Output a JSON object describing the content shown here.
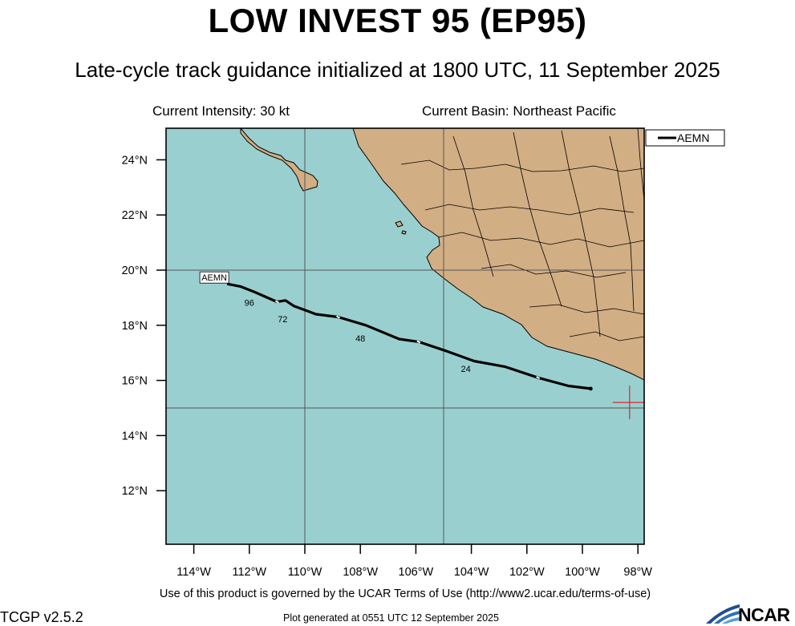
{
  "header": {
    "title": "LOW INVEST 95 (EP95)",
    "subtitle": "Late-cycle track guidance initialized at 1800 UTC, 11 September 2025",
    "intensity": "Current Intensity: 30 kt",
    "basin": "Current Basin: Northeast Pacific"
  },
  "map": {
    "ocean_color": "#9ACFCF",
    "land_color": "#D2AE85",
    "lat_range": [
      10,
      25
    ],
    "lon_range": [
      -115,
      -97.8
    ],
    "lat_ticks": [
      {
        "lat": 24,
        "label": "24°N"
      },
      {
        "lat": 22,
        "label": "22°N"
      },
      {
        "lat": 20,
        "label": "20°N"
      },
      {
        "lat": 18,
        "label": "18°N"
      },
      {
        "lat": 16,
        "label": "16°N"
      },
      {
        "lat": 14,
        "label": "14°N"
      },
      {
        "lat": 12,
        "label": "12°N"
      }
    ],
    "lon_ticks": [
      {
        "lon": -114,
        "label": "114°W"
      },
      {
        "lon": -112,
        "label": "112°W"
      },
      {
        "lon": -110,
        "label": "110°W"
      },
      {
        "lon": -108,
        "label": "108°W"
      },
      {
        "lon": -106,
        "label": "106°W"
      },
      {
        "lon": -104,
        "label": "104°W"
      },
      {
        "lon": -102,
        "label": "102°W"
      },
      {
        "lon": -100,
        "label": "100°W"
      },
      {
        "lon": -98,
        "label": "98°W"
      }
    ],
    "gridlines": {
      "lats": [
        20,
        15
      ],
      "lons": [
        -110,
        -105
      ]
    },
    "current_position": {
      "lat": 15.2,
      "lon": -98.3
    }
  },
  "legend": {
    "label": "AEMN"
  },
  "track": {
    "name": "AEMN",
    "label": "AEMN",
    "points": [
      {
        "lon": -99.7,
        "lat": 15.7
      },
      {
        "lon": -100.5,
        "lat": 15.8
      },
      {
        "lon": -101.6,
        "lat": 16.1
      },
      {
        "lon": -102.8,
        "lat": 16.5
      },
      {
        "lon": -103.9,
        "lat": 16.7
      },
      {
        "lon": -105.0,
        "lat": 17.1
      },
      {
        "lon": -105.9,
        "lat": 17.4
      },
      {
        "lon": -106.6,
        "lat": 17.5
      },
      {
        "lon": -107.8,
        "lat": 18.0
      },
      {
        "lon": -108.8,
        "lat": 18.3
      },
      {
        "lon": -109.6,
        "lat": 18.4
      },
      {
        "lon": -110.4,
        "lat": 18.7
      },
      {
        "lon": -110.7,
        "lat": 18.9
      },
      {
        "lon": -111.0,
        "lat": 18.85
      },
      {
        "lon": -111.8,
        "lat": 19.2
      },
      {
        "lon": -112.3,
        "lat": 19.4
      },
      {
        "lon": -112.8,
        "lat": 19.5
      }
    ],
    "hour_labels": [
      {
        "text": "24",
        "lon": -104.2,
        "lat": 16.6
      },
      {
        "text": "48",
        "lon": -108.0,
        "lat": 17.7
      },
      {
        "text": "72",
        "lon": -110.8,
        "lat": 18.4
      },
      {
        "text": "96",
        "lon": -112.0,
        "lat": 19.0
      }
    ],
    "markers": [
      {
        "lon": -101.6,
        "lat": 16.1
      },
      {
        "lon": -105.9,
        "lat": 17.4
      },
      {
        "lon": -108.8,
        "lat": 18.3
      },
      {
        "lon": -111.0,
        "lat": 18.85
      }
    ]
  },
  "footer": {
    "terms": "Use of this product is governed by the UCAR Terms of Use (http://www2.ucar.edu/terms-of-use)",
    "version": "TCGP v2.5.2",
    "generated": "Plot generated at 0551 UTC   12 September 2025",
    "logo": "NCAR"
  }
}
